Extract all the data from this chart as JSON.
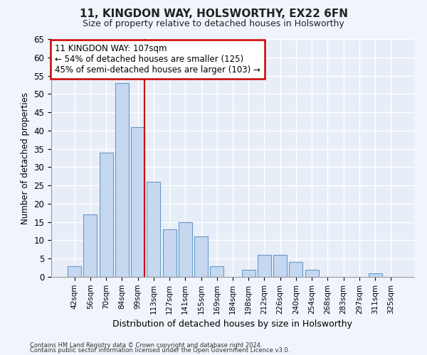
{
  "title": "11, KINGDON WAY, HOLSWORTHY, EX22 6FN",
  "subtitle": "Size of property relative to detached houses in Holsworthy",
  "xlabel": "Distribution of detached houses by size in Holsworthy",
  "ylabel": "Number of detached properties",
  "bar_color": "#c5d8f0",
  "bar_edge_color": "#6899c8",
  "categories": [
    "42sqm",
    "56sqm",
    "70sqm",
    "84sqm",
    "99sqm",
    "113sqm",
    "127sqm",
    "141sqm",
    "155sqm",
    "169sqm",
    "184sqm",
    "198sqm",
    "212sqm",
    "226sqm",
    "240sqm",
    "254sqm",
    "268sqm",
    "283sqm",
    "297sqm",
    "311sqm",
    "325sqm"
  ],
  "values": [
    3,
    17,
    34,
    53,
    41,
    26,
    13,
    15,
    11,
    3,
    0,
    2,
    6,
    6,
    4,
    2,
    0,
    0,
    0,
    1,
    0
  ],
  "ylim": [
    0,
    65
  ],
  "yticks": [
    0,
    5,
    10,
    15,
    20,
    25,
    30,
    35,
    40,
    45,
    50,
    55,
    60,
    65
  ],
  "annotation_line1": "11 KINGDON WAY: 107sqm",
  "annotation_line2": "← 54% of detached houses are smaller (125)",
  "annotation_line3": "45% of semi-detached houses are larger (103) →",
  "annotation_box_color": "#ffffff",
  "annotation_box_edge": "#cc0000",
  "line_color": "#cc0000",
  "footer_line1": "Contains HM Land Registry data © Crown copyright and database right 2024.",
  "footer_line2": "Contains public sector information licensed under the Open Government Licence v3.0.",
  "fig_bg_color": "#f0f4fc",
  "axes_bg_color": "#e8eef8",
  "grid_color": "#ffffff"
}
